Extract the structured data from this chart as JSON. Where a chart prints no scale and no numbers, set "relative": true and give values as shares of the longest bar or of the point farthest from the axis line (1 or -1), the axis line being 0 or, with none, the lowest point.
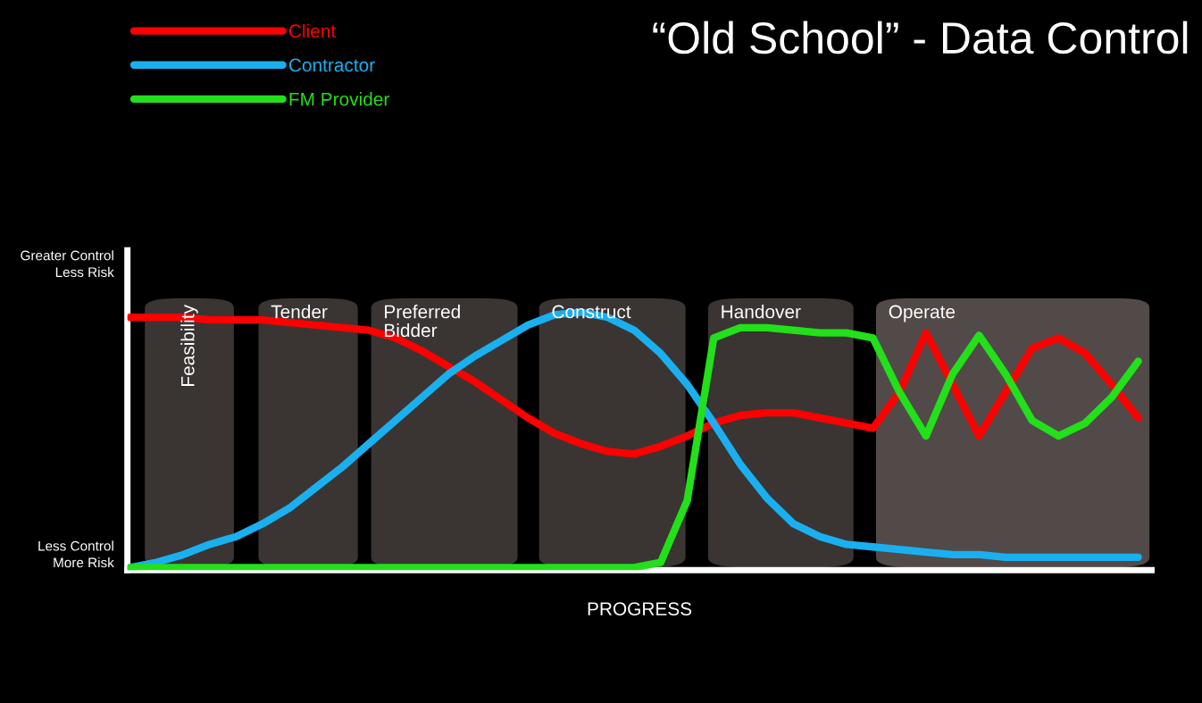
{
  "chart_data": {
    "type": "line",
    "title": "“Old School” - Data Control",
    "xlabel": "PROGRESS",
    "relative": true,
    "categories": [
      null,
      null,
      null,
      null,
      null,
      null,
      null,
      null,
      null,
      null,
      null,
      null,
      null,
      null,
      null,
      null,
      null,
      null,
      null,
      null,
      null,
      null,
      null,
      null,
      null,
      null,
      null,
      null,
      null,
      null,
      null,
      null,
      null,
      null,
      null,
      null,
      null,
      null,
      null
    ],
    "series": [
      {
        "name": "Client",
        "color": "#ff0000",
        "values": [
          0.98,
          0.98,
          0.98,
          0.97,
          0.97,
          0.97,
          0.96,
          0.95,
          0.94,
          0.93,
          0.9,
          0.85,
          0.79,
          0.73,
          0.66,
          0.59,
          0.53,
          0.49,
          0.46,
          0.45,
          0.48,
          0.52,
          0.57,
          0.6,
          0.61,
          0.61,
          0.59,
          0.57,
          0.55,
          0.69,
          0.92,
          0.72,
          0.52,
          0.69,
          0.86,
          0.9,
          0.84,
          0.72,
          0.59
        ]
      },
      {
        "name": "Contractor",
        "color": "#1ab0f0",
        "values": [
          0.01,
          0.03,
          0.06,
          0.1,
          0.13,
          0.18,
          0.24,
          0.32,
          0.4,
          0.49,
          0.58,
          0.67,
          0.76,
          0.83,
          0.89,
          0.95,
          0.99,
          1.0,
          0.98,
          0.93,
          0.84,
          0.72,
          0.57,
          0.41,
          0.28,
          0.18,
          0.13,
          0.1,
          0.09,
          0.08,
          0.07,
          0.06,
          0.06,
          0.05,
          0.05,
          0.05,
          0.05,
          0.05,
          0.05
        ]
      },
      {
        "name": "FM Provider",
        "color": "#22e01a",
        "values": [
          0.01,
          0.01,
          0.01,
          0.01,
          0.01,
          0.01,
          0.01,
          0.01,
          0.01,
          0.01,
          0.01,
          0.01,
          0.01,
          0.01,
          0.01,
          0.01,
          0.01,
          0.01,
          0.01,
          0.01,
          0.03,
          0.27,
          0.9,
          0.94,
          0.94,
          0.93,
          0.92,
          0.92,
          0.9,
          0.69,
          0.52,
          0.76,
          0.91,
          0.76,
          0.58,
          0.52,
          0.57,
          0.67,
          0.81
        ]
      }
    ],
    "annotations": [
      "Greater Control\nLess Risk",
      "Less Control\nMore Risk",
      "Feasibility",
      "Tender",
      "Preferred\nBidder",
      "Construct",
      "Handover",
      "Operate"
    ],
    "legend": "top left",
    "grid": false,
    "marker": "none",
    "line_style": "solid"
  }
}
